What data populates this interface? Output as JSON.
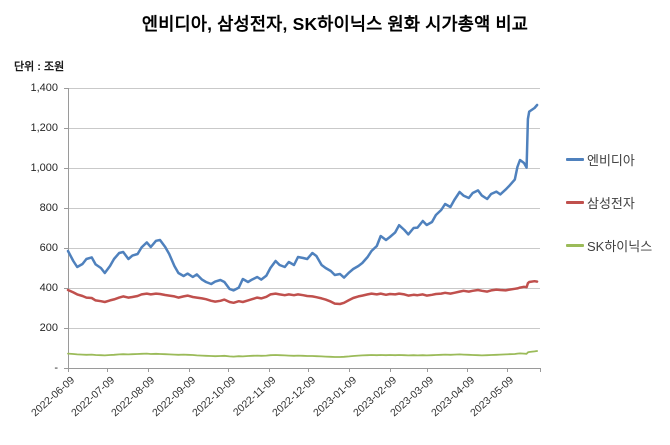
{
  "title": "엔비디아, 삼성전자, SK하이닉스 원화 시가총액 비교",
  "unit_label": "단위 : 조원",
  "colors": {
    "grid": "#c9c9c9",
    "axis": "#9a9a9a",
    "title_text": "#000000",
    "tick_text": "#333333",
    "nvidia": "#4F81BD",
    "samsung": "#C0504D",
    "sk_hynix": "#9BBB59"
  },
  "chart_data": {
    "type": "line",
    "title": "엔비디아, 삼성전자, SK하이닉스 원화 시가총액 비교",
    "ylabel": "단위 : 조원",
    "ylim": [
      0,
      1400
    ],
    "grid": true,
    "legend_position": "right",
    "y_ticks": {
      "labels": [
        "1,400",
        "1,200",
        "1,000",
        "800",
        "600",
        "400",
        "200",
        "-"
      ],
      "values": [
        1400,
        1200,
        1000,
        800,
        600,
        400,
        200,
        0
      ]
    },
    "x_tick_labels": [
      "2022-06-09",
      "2022-07-09",
      "2022-08-09",
      "2022-09-09",
      "2022-10-09",
      "2022-11-09",
      "2022-12-09",
      "2023-01-09",
      "2023-02-09",
      "2023-03-09",
      "2023-04-09",
      "2023-05-09"
    ],
    "x": [
      "2022-06-09",
      "2022-06-13",
      "2022-06-16",
      "2022-06-20",
      "2022-06-23",
      "2022-06-27",
      "2022-06-30",
      "2022-07-04",
      "2022-07-07",
      "2022-07-11",
      "2022-07-14",
      "2022-07-18",
      "2022-07-21",
      "2022-07-25",
      "2022-07-28",
      "2022-08-01",
      "2022-08-04",
      "2022-08-08",
      "2022-08-11",
      "2022-08-15",
      "2022-08-18",
      "2022-08-22",
      "2022-08-25",
      "2022-08-29",
      "2022-09-01",
      "2022-09-05",
      "2022-09-08",
      "2022-09-12",
      "2022-09-15",
      "2022-09-19",
      "2022-09-22",
      "2022-09-26",
      "2022-09-29",
      "2022-10-03",
      "2022-10-06",
      "2022-10-10",
      "2022-10-13",
      "2022-10-17",
      "2022-10-20",
      "2022-10-24",
      "2022-10-27",
      "2022-10-31",
      "2022-11-03",
      "2022-11-07",
      "2022-11-10",
      "2022-11-14",
      "2022-11-17",
      "2022-11-21",
      "2022-11-24",
      "2022-11-28",
      "2022-12-01",
      "2022-12-05",
      "2022-12-08",
      "2022-12-12",
      "2022-12-15",
      "2022-12-19",
      "2022-12-22",
      "2022-12-26",
      "2022-12-29",
      "2023-01-02",
      "2023-01-05",
      "2023-01-09",
      "2023-01-12",
      "2023-01-16",
      "2023-01-19",
      "2023-01-23",
      "2023-01-26",
      "2023-01-30",
      "2023-02-02",
      "2023-02-06",
      "2023-02-09",
      "2023-02-13",
      "2023-02-16",
      "2023-02-20",
      "2023-02-23",
      "2023-02-27",
      "2023-03-02",
      "2023-03-06",
      "2023-03-09",
      "2023-03-13",
      "2023-03-16",
      "2023-03-20",
      "2023-03-23",
      "2023-03-27",
      "2023-03-30",
      "2023-04-03",
      "2023-04-06",
      "2023-04-10",
      "2023-04-13",
      "2023-04-17",
      "2023-04-20",
      "2023-04-24",
      "2023-04-27",
      "2023-05-01",
      "2023-05-04",
      "2023-05-08",
      "2023-05-11",
      "2023-05-15",
      "2023-05-17",
      "2023-05-19",
      "2023-05-22",
      "2023-05-24",
      "2023-05-25",
      "2023-05-26",
      "2023-05-30",
      "2023-06-01"
    ],
    "series": [
      {
        "key": "nvidia",
        "name": "엔비디아",
        "color": "#4F81BD",
        "stroke_width": 2.5,
        "values": [
          585,
          535,
          505,
          520,
          545,
          553,
          518,
          500,
          475,
          510,
          545,
          575,
          580,
          545,
          562,
          570,
          603,
          628,
          605,
          636,
          640,
          605,
          570,
          510,
          475,
          460,
          472,
          455,
          468,
          442,
          430,
          420,
          432,
          440,
          430,
          395,
          388,
          402,
          445,
          430,
          442,
          455,
          442,
          462,
          500,
          535,
          515,
          505,
          530,
          515,
          555,
          550,
          545,
          575,
          560,
          515,
          500,
          485,
          465,
          470,
          452,
          478,
          495,
          510,
          525,
          555,
          585,
          610,
          660,
          640,
          655,
          678,
          714,
          690,
          668,
          700,
          702,
          735,
          715,
          730,
          765,
          790,
          820,
          805,
          840,
          880,
          862,
          850,
          875,
          888,
          862,
          845,
          870,
          882,
          868,
          892,
          912,
          942,
          1005,
          1040,
          1025,
          1002,
          1245,
          1282,
          1300,
          1315
        ]
      },
      {
        "key": "samsung",
        "name": "삼성전자",
        "color": "#C0504D",
        "stroke_width": 2.5,
        "values": [
          390,
          378,
          368,
          360,
          352,
          350,
          338,
          334,
          330,
          338,
          343,
          352,
          358,
          352,
          355,
          360,
          368,
          372,
          368,
          372,
          370,
          365,
          362,
          358,
          352,
          358,
          362,
          355,
          352,
          348,
          344,
          336,
          332,
          336,
          342,
          330,
          326,
          334,
          330,
          338,
          344,
          352,
          348,
          356,
          368,
          372,
          368,
          364,
          368,
          364,
          368,
          364,
          360,
          358,
          354,
          348,
          342,
          332,
          322,
          320,
          326,
          340,
          350,
          358,
          362,
          368,
          372,
          368,
          372,
          366,
          370,
          368,
          372,
          368,
          362,
          366,
          364,
          368,
          362,
          366,
          370,
          372,
          376,
          372,
          376,
          382,
          386,
          382,
          386,
          390,
          386,
          382,
          388,
          392,
          390,
          388,
          392,
          396,
          398,
          402,
          406,
          404,
          424,
          430,
          434,
          432
        ]
      },
      {
        "key": "sk-hynix",
        "name": "SK하이닉스",
        "color": "#9BBB59",
        "stroke_width": 1.8,
        "values": [
          72,
          70,
          68,
          67,
          66,
          67,
          65,
          64,
          63,
          65,
          66,
          68,
          69,
          68,
          69,
          70,
          71,
          72,
          70,
          71,
          70,
          69,
          68,
          67,
          66,
          67,
          66,
          65,
          63,
          62,
          61,
          60,
          59,
          60,
          61,
          58,
          57,
          59,
          58,
          60,
          61,
          62,
          61,
          62,
          64,
          65,
          64,
          63,
          62,
          61,
          62,
          61,
          60,
          60,
          59,
          58,
          57,
          56,
          55,
          55,
          56,
          58,
          60,
          62,
          63,
          64,
          65,
          64,
          65,
          64,
          65,
          64,
          65,
          64,
          63,
          64,
          63,
          64,
          63,
          64,
          65,
          66,
          67,
          66,
          67,
          68,
          67,
          66,
          65,
          64,
          63,
          64,
          65,
          66,
          67,
          68,
          69,
          70,
          72,
          73,
          72,
          71,
          78,
          80,
          83,
          85
        ]
      }
    ]
  }
}
